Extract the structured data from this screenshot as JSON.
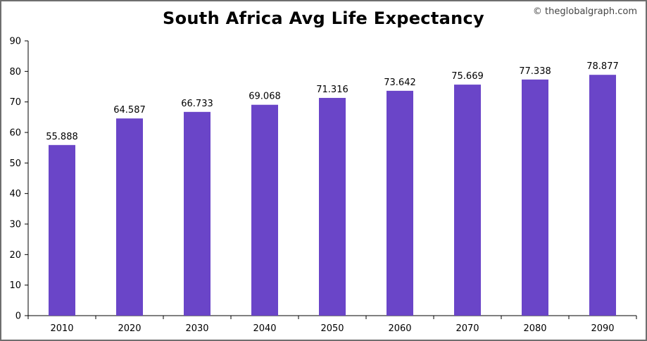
{
  "chart_data": {
    "type": "bar",
    "title": "South Africa Avg Life Expectancy",
    "watermark": "© theglobalgraph.com",
    "categories": [
      "2010",
      "2020",
      "2030",
      "2040",
      "2050",
      "2060",
      "2070",
      "2080",
      "2090"
    ],
    "values": [
      55.888,
      64.587,
      66.733,
      69.068,
      71.316,
      73.642,
      75.669,
      77.338,
      78.877
    ],
    "value_labels": [
      "55.888",
      "64.587",
      "66.733",
      "69.068",
      "71.316",
      "73.642",
      "75.669",
      "77.338",
      "78.877"
    ],
    "yticks": [
      "0",
      "10",
      "20",
      "30",
      "40",
      "50",
      "60",
      "70",
      "80",
      "90"
    ],
    "ylim": [
      0,
      90
    ],
    "xlabel": "",
    "ylabel": "",
    "grid": false,
    "bar_color": "#6a45c8"
  }
}
